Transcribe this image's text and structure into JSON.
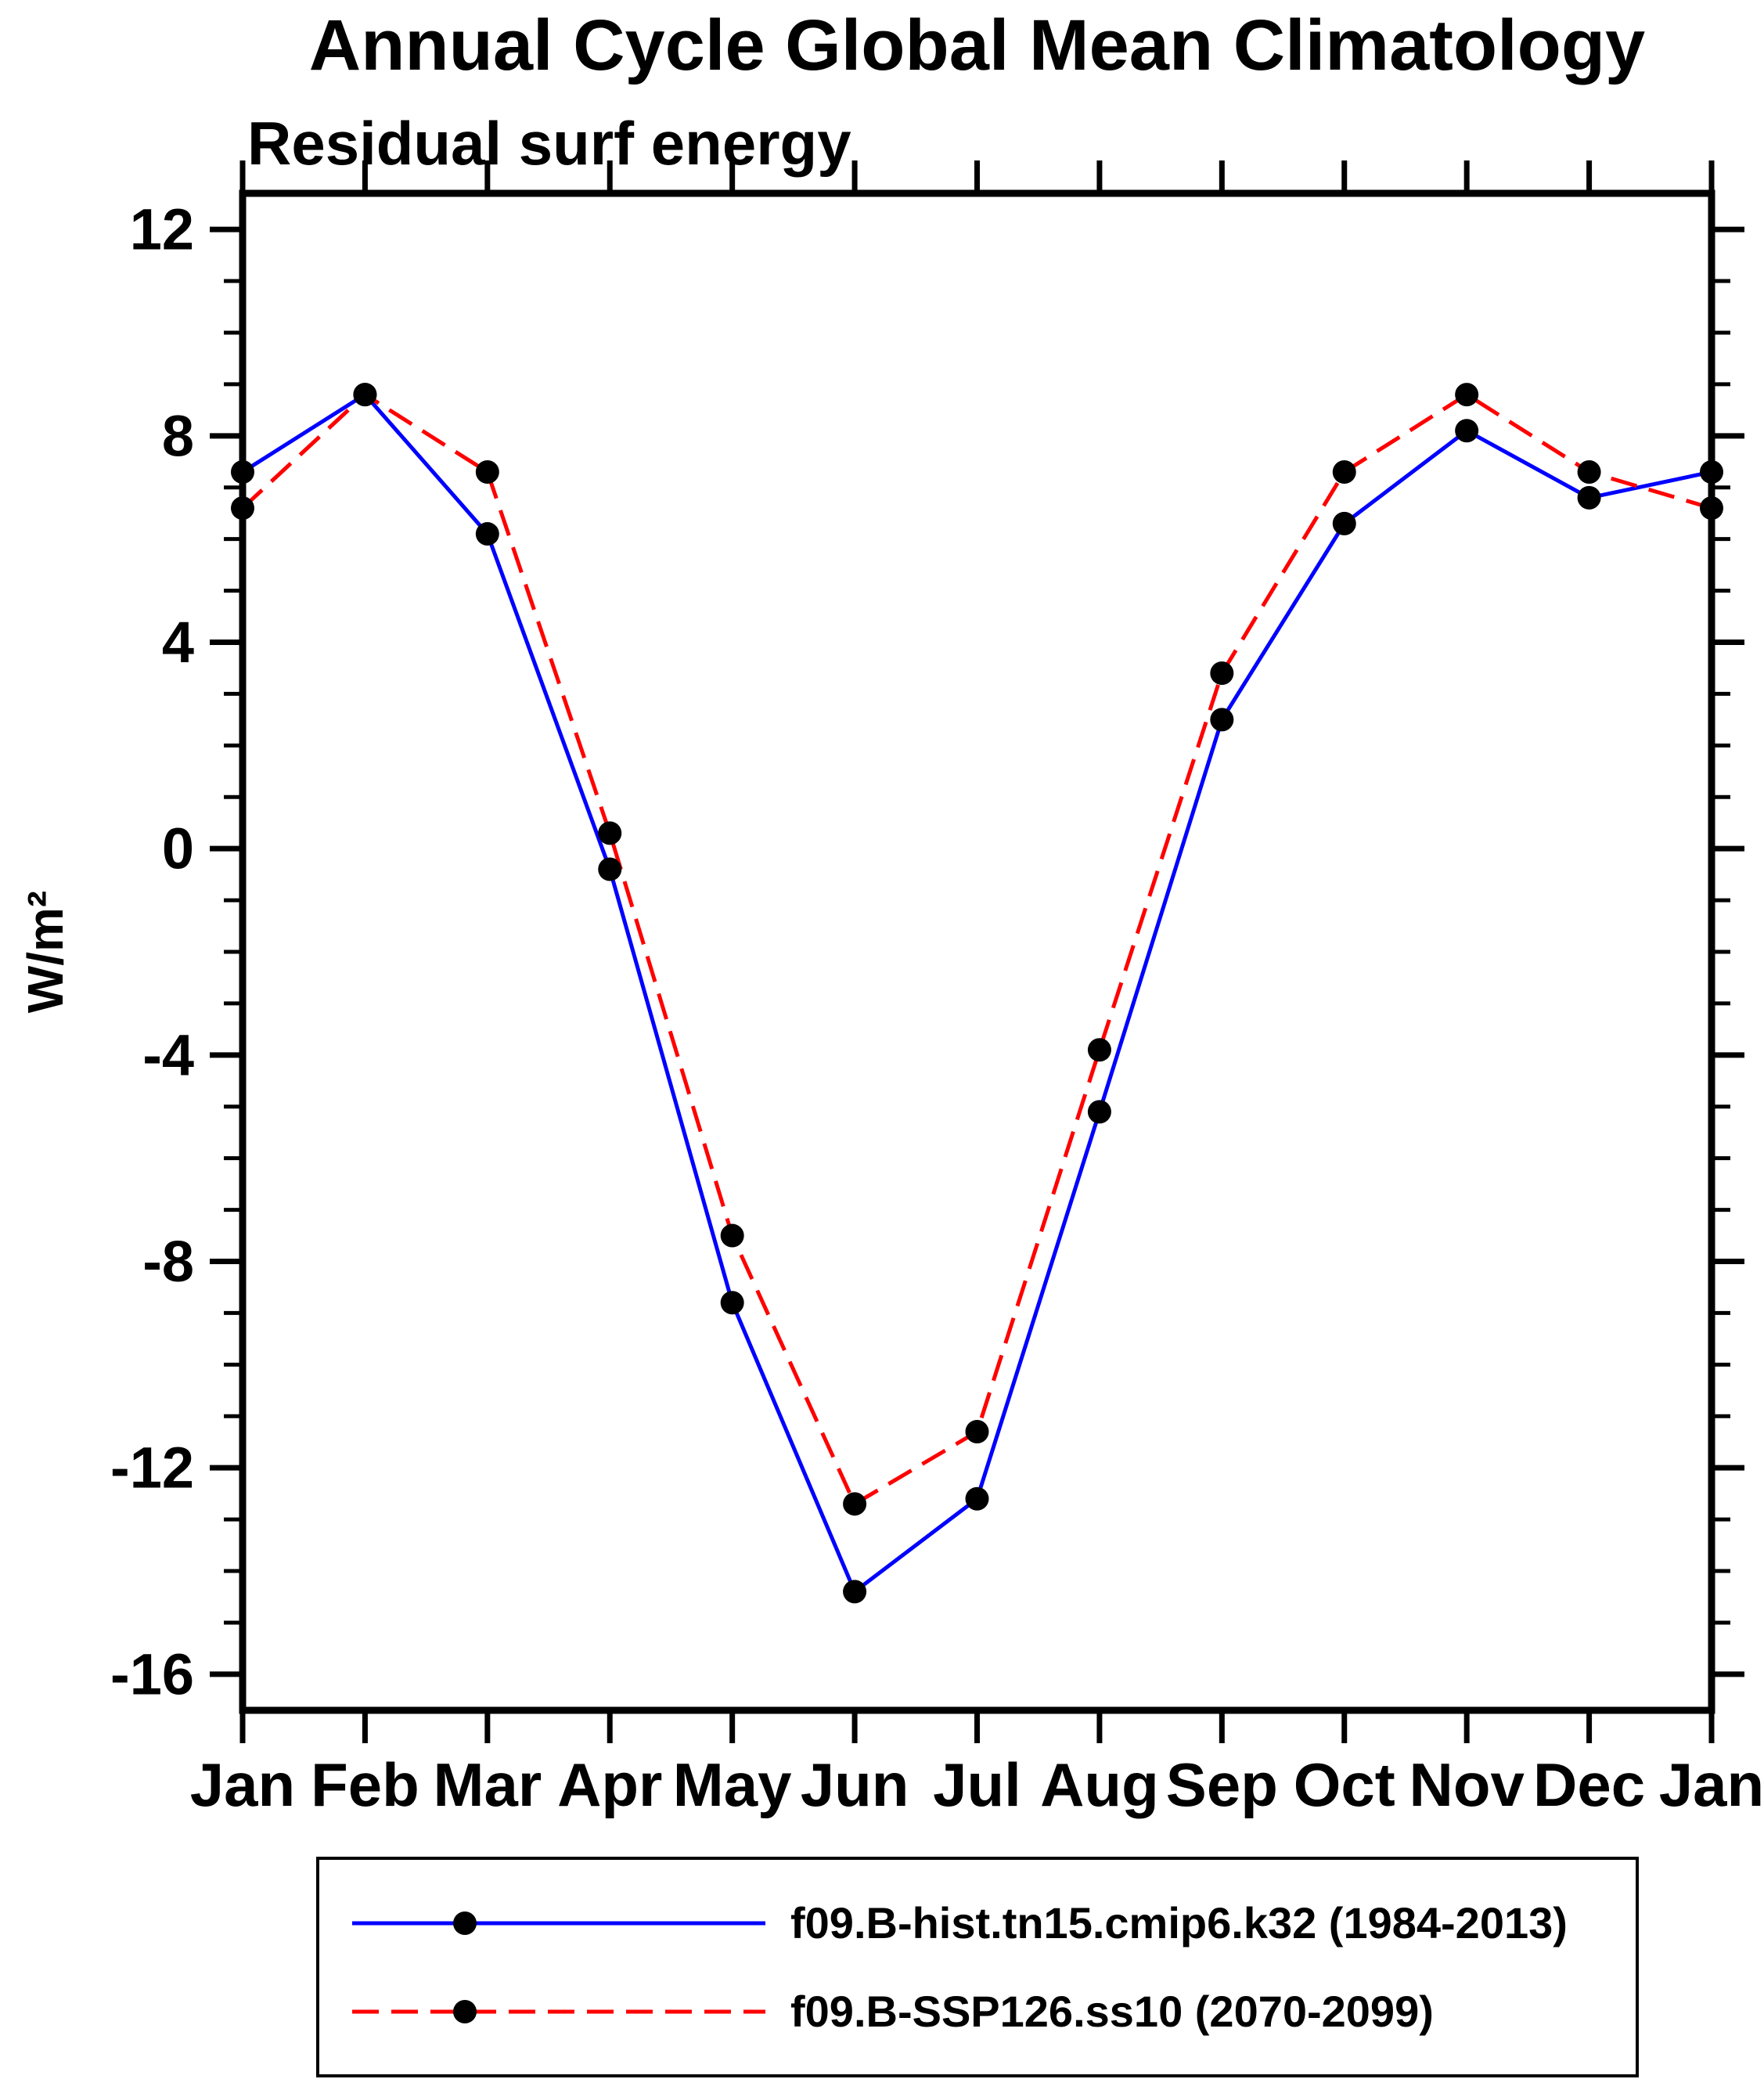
{
  "page": {
    "background": "#ffffff"
  },
  "chart_data": {
    "type": "line",
    "title": "Annual Cycle Global Mean Climatology",
    "subtitle": "Residual surf energy",
    "ylabel": "W/m²",
    "xlabel": "",
    "categories": [
      "Jan",
      "Feb",
      "Mar",
      "Apr",
      "May",
      "Jun",
      "Jul",
      "Aug",
      "Sep",
      "Oct",
      "Nov",
      "Dec",
      "Jan"
    ],
    "ylim": [
      -16.7,
      12.7
    ],
    "yticks_major": [
      12,
      8,
      4,
      0,
      -4,
      -8,
      -12,
      -16
    ],
    "ytick_minor_step": 1,
    "grid": false,
    "legend_position": "bottom",
    "axis_color": "#000000",
    "series": [
      {
        "name": "f09.B-hist.tn15.cmip6.k32 (1984-2013)",
        "color": "#0000FF",
        "line_style": "solid",
        "marker": "filled-circle",
        "marker_color": "#000000",
        "values": [
          7.3,
          8.8,
          6.1,
          -0.4,
          -8.8,
          -14.4,
          -12.6,
          -5.1,
          2.5,
          6.3,
          8.1,
          6.8,
          7.3
        ]
      },
      {
        "name": "f09.B-SSP126.ss10 (2070-2099)",
        "color": "#FF0000",
        "line_style": "dashed",
        "marker": "filled-circle",
        "marker_color": "#000000",
        "values": [
          6.6,
          8.8,
          7.3,
          0.3,
          -7.5,
          -12.7,
          -11.3,
          -3.9,
          3.4,
          7.3,
          8.8,
          7.3,
          6.6
        ]
      }
    ]
  }
}
